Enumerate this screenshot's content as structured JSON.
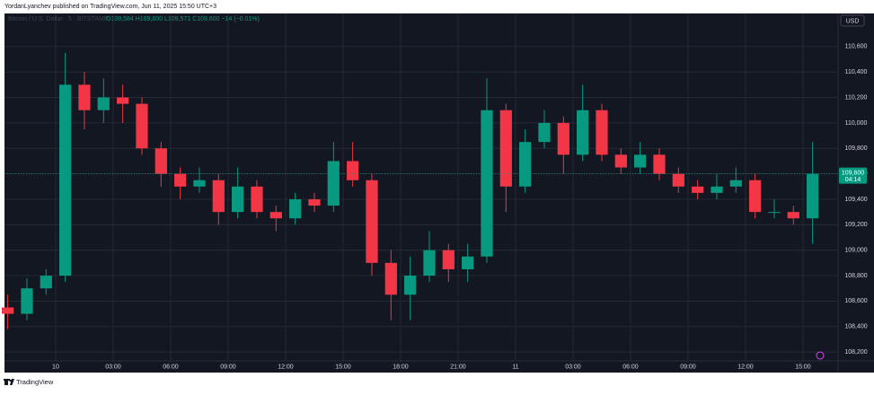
{
  "header": "YordanLyanchev published on TradingView.com, Jun 11, 2025 15:50 UTC+3",
  "footer": "TradingView",
  "chart_data": {
    "type": "candlestick",
    "symbol": "Bitcoin / U.S. Dollar · 5 · BITSTAMP",
    "ohlc_info": "O109,584 H109,600 L109,571 C109,600 −14 (−0.01%)",
    "currency": "USD",
    "x": [
      -2.5,
      -1.5,
      -0.5,
      0.5,
      1.5,
      2.5,
      3.5,
      4.5,
      5.5,
      6.5,
      7.5,
      8.5,
      9.5,
      10.5,
      11.5,
      12.5,
      13.5,
      14.5,
      15.5,
      16.5,
      17.5,
      18.5,
      19.5,
      20.5,
      21.5,
      22.5,
      23.5,
      24.5,
      25.5,
      26.5,
      27.5,
      28.5,
      29.5,
      30.5,
      31.5,
      32.5,
      33.5,
      34.5,
      35.5,
      36.5,
      37.5,
      38.5,
      39.5
    ],
    "open": [
      108550,
      108500,
      108700,
      108800,
      110300,
      110100,
      110200,
      110150,
      109800,
      109600,
      109500,
      109550,
      109300,
      109500,
      109300,
      109250,
      109400,
      109350,
      109700,
      109550,
      108900,
      108650,
      108800,
      109000,
      108850,
      108950,
      110100,
      109500,
      109850,
      110000,
      109750,
      110100,
      109750,
      109650,
      109750,
      109600,
      109500,
      109450,
      109500,
      109550,
      109300,
      109300,
      109250
    ],
    "high": [
      108650,
      108780,
      108850,
      110550,
      110400,
      110350,
      110300,
      110200,
      109850,
      109650,
      109650,
      109600,
      109650,
      109550,
      109350,
      109450,
      109450,
      109850,
      109850,
      109600,
      109000,
      108950,
      109150,
      109050,
      109050,
      110350,
      110150,
      109950,
      110100,
      110050,
      110300,
      110150,
      109800,
      109850,
      109800,
      109650,
      109550,
      109600,
      109650,
      109600,
      109400,
      109350,
      109850
    ],
    "low": [
      108380,
      108450,
      108650,
      108750,
      109950,
      110000,
      110000,
      109750,
      109500,
      109400,
      109450,
      109200,
      109250,
      109250,
      109150,
      109200,
      109300,
      109300,
      109500,
      108800,
      108450,
      108450,
      108750,
      108750,
      108750,
      108900,
      109300,
      109450,
      109800,
      109600,
      109700,
      109700,
      109600,
      109600,
      109550,
      109450,
      109400,
      109400,
      109450,
      109250,
      109250,
      109200,
      109050
    ],
    "close": [
      108500,
      108700,
      108800,
      110300,
      110100,
      110200,
      110150,
      109800,
      109600,
      109500,
      109550,
      109300,
      109500,
      109300,
      109250,
      109400,
      109350,
      109700,
      109550,
      108900,
      108650,
      108800,
      109000,
      108850,
      108950,
      110100,
      109500,
      109850,
      110000,
      109750,
      110100,
      109750,
      109650,
      109750,
      109600,
      109500,
      109450,
      109500,
      109550,
      109300,
      109300,
      109250,
      109600
    ],
    "up_color": "#089981",
    "down_color": "#f23645",
    "xlim": [
      -2.67,
      40.83
    ],
    "xticks": [
      {
        "value": 0,
        "label": "10"
      },
      {
        "value": 3,
        "label": "03:00"
      },
      {
        "value": 6,
        "label": "06:00"
      },
      {
        "value": 9,
        "label": "09:00"
      },
      {
        "value": 12,
        "label": "12:00"
      },
      {
        "value": 15,
        "label": "15:00"
      },
      {
        "value": 18,
        "label": "18:00"
      },
      {
        "value": 21,
        "label": "21:00"
      },
      {
        "value": 24,
        "label": "11"
      },
      {
        "value": 27,
        "label": "03:00"
      },
      {
        "value": 30,
        "label": "06:00"
      },
      {
        "value": 33,
        "label": "09:00"
      },
      {
        "value": 36,
        "label": "12:00"
      },
      {
        "value": 39,
        "label": "15:00"
      }
    ],
    "ylim": [
      108130,
      110860
    ],
    "yticks": [
      {
        "value": 108200,
        "label": "108,200"
      },
      {
        "value": 108400,
        "label": "108,400"
      },
      {
        "value": 108600,
        "label": "108,600"
      },
      {
        "value": 108800,
        "label": "108,800"
      },
      {
        "value": 109000,
        "label": "109,000"
      },
      {
        "value": 109200,
        "label": "109,200"
      },
      {
        "value": 109400,
        "label": "109,400"
      },
      {
        "value": 109600,
        "label": "109,600"
      },
      {
        "value": 109800,
        "label": "109,800"
      },
      {
        "value": 110000,
        "label": "110,000"
      },
      {
        "value": 110200,
        "label": "110,200"
      },
      {
        "value": 110400,
        "label": "110,400"
      },
      {
        "value": 110600,
        "label": "110,600"
      }
    ],
    "grid": true,
    "last_price": {
      "value": 109600,
      "label": "109,600"
    },
    "countdown": "04:14"
  }
}
